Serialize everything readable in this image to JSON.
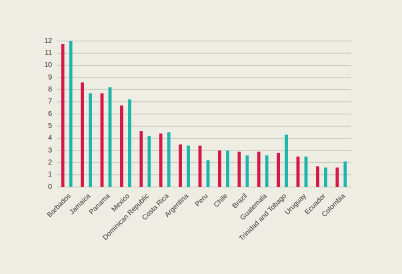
{
  "chart_data": {
    "type": "bar",
    "categories": [
      "Barbados",
      "Jamaica",
      "Panama",
      "Mexico",
      "Dominican Republic",
      "Costa Rica",
      "Argentina",
      "Peru",
      "Chile",
      "Brazil",
      "Guatemala",
      "Trinidad and Tobago",
      "Uruguay",
      "Ecuador",
      "Colombia"
    ],
    "series": [
      {
        "color": "#d6174a",
        "values": [
          11.75,
          8.6,
          7.7,
          6.7,
          4.6,
          4.4,
          3.5,
          3.4,
          3.0,
          2.9,
          2.9,
          2.8,
          2.5,
          1.7,
          1.6
        ]
      },
      {
        "color": "#1fb5ad",
        "values": [
          12.0,
          7.7,
          8.2,
          7.2,
          4.2,
          4.5,
          3.4,
          2.2,
          3.0,
          2.6,
          2.6,
          4.3,
          2.5,
          1.6,
          2.1
        ]
      }
    ],
    "ylim": [
      0,
      12
    ],
    "yticks": [
      0,
      1,
      2,
      3,
      4,
      5,
      6,
      7,
      8,
      9,
      10,
      11,
      12
    ],
    "grid": true
  }
}
